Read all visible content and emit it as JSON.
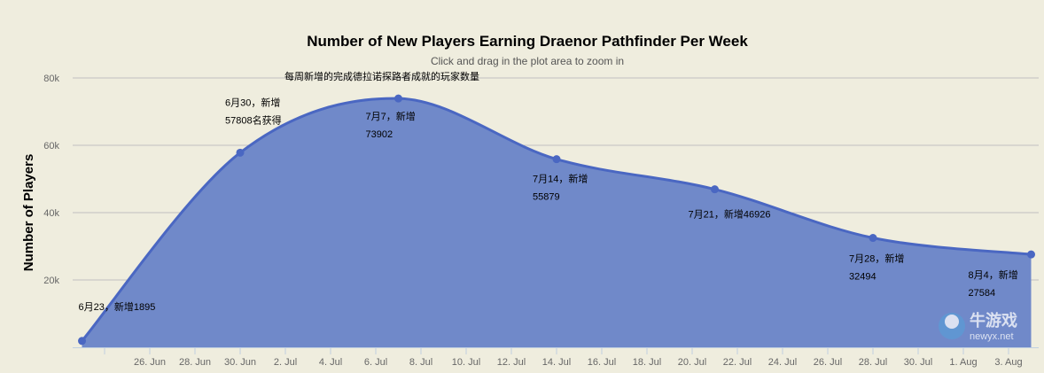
{
  "chart_data": {
    "type": "area",
    "title": "Number of New Players Earning Draenor Pathfinder Per Week",
    "subtitle": "Click and drag in the plot area to zoom in",
    "series_caption": "每周新增的完成德拉诺探路者成就的玩家数量",
    "ylabel": "Number of Players",
    "xlabel": "",
    "ylim": [
      0,
      80000
    ],
    "yticks": [
      {
        "value": 20000,
        "label": "20k"
      },
      {
        "value": 40000,
        "label": "40k"
      },
      {
        "value": 60000,
        "label": "60k"
      },
      {
        "value": 80000,
        "label": "80k"
      }
    ],
    "xlim": [
      "2014-06-23",
      "2014-08-04"
    ],
    "xticks": [
      {
        "date": "2014-06-24",
        "label": ""
      },
      {
        "date": "2014-06-26",
        "label": "26. Jun"
      },
      {
        "date": "2014-06-28",
        "label": "28. Jun"
      },
      {
        "date": "2014-06-30",
        "label": "30. Jun"
      },
      {
        "date": "2014-07-02",
        "label": "2. Jul"
      },
      {
        "date": "2014-07-04",
        "label": "4. Jul"
      },
      {
        "date": "2014-07-06",
        "label": "6. Jul"
      },
      {
        "date": "2014-07-08",
        "label": "8. Jul"
      },
      {
        "date": "2014-07-10",
        "label": "10. Jul"
      },
      {
        "date": "2014-07-12",
        "label": "12. Jul"
      },
      {
        "date": "2014-07-14",
        "label": "14. Jul"
      },
      {
        "date": "2014-07-16",
        "label": "16. Jul"
      },
      {
        "date": "2014-07-18",
        "label": "18. Jul"
      },
      {
        "date": "2014-07-20",
        "label": "20. Jul"
      },
      {
        "date": "2014-07-22",
        "label": "22. Jul"
      },
      {
        "date": "2014-07-24",
        "label": "24. Jul"
      },
      {
        "date": "2014-07-26",
        "label": "26. Jul"
      },
      {
        "date": "2014-07-28",
        "label": "28. Jul"
      },
      {
        "date": "2014-07-30",
        "label": "30. Jul"
      },
      {
        "date": "2014-08-01",
        "label": "1. Aug"
      },
      {
        "date": "2014-08-03",
        "label": "3. Aug"
      }
    ],
    "grid": true,
    "legend": "none",
    "colors": {
      "line": "#4a67c2",
      "fill": "#7089c9",
      "grid": "#c0c0c0",
      "background": "#efedde"
    },
    "points": [
      {
        "date": "2014-06-23",
        "value": 1895,
        "annotation": [
          "6月23，新增1895"
        ]
      },
      {
        "date": "2014-06-30",
        "value": 57808,
        "annotation": [
          "6月30，新增",
          "57808名获得"
        ]
      },
      {
        "date": "2014-07-07",
        "value": 73902,
        "annotation": [
          "7月7，新增",
          "73902"
        ]
      },
      {
        "date": "2014-07-14",
        "value": 55879,
        "annotation": [
          "7月14，新增",
          "55879"
        ]
      },
      {
        "date": "2014-07-21",
        "value": 46926,
        "annotation": [
          "7月21，新增46926"
        ]
      },
      {
        "date": "2014-07-28",
        "value": 32494,
        "annotation": [
          "7月28，新增",
          "32494"
        ]
      },
      {
        "date": "2014-08-04",
        "value": 27584,
        "annotation": [
          "8月4，新增",
          "27584"
        ]
      }
    ]
  },
  "watermark": {
    "text": "牛游戏",
    "domain": "newyx.net"
  }
}
